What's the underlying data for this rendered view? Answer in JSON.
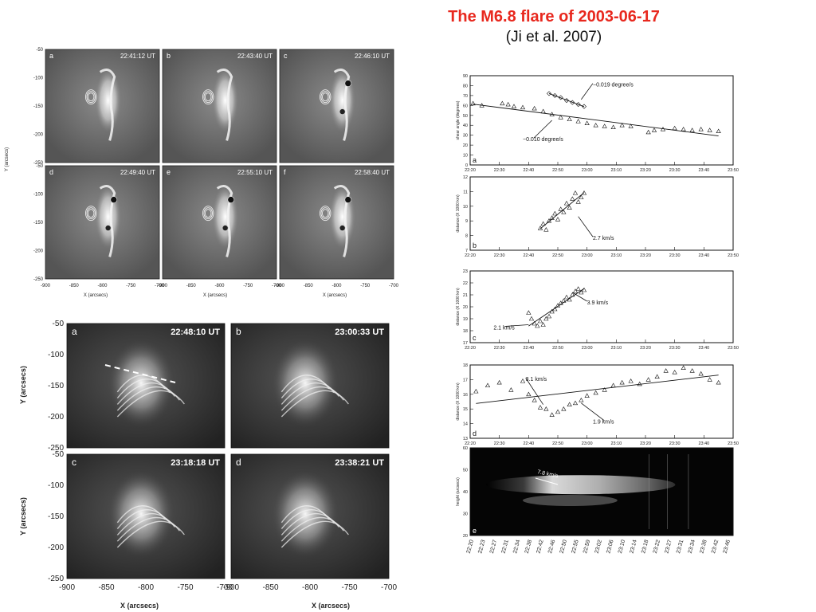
{
  "title": {
    "main": "The M6.8 flare of 2003-06-17",
    "citation": "(Ji  et al. 2007)"
  },
  "top_grid": {
    "ylabel": "Y (arcsecs)",
    "xlabel": "X (arcsecs)",
    "yticks": [
      "-50",
      "-100",
      "-150",
      "-200",
      "-250"
    ],
    "xticks": [
      "-900",
      "-850",
      "-800",
      "-750",
      "-700"
    ],
    "panels": [
      {
        "letter": "a",
        "time": "22:41:12 UT"
      },
      {
        "letter": "b",
        "time": "22:43:40 UT"
      },
      {
        "letter": "c",
        "time": "22:46:10 UT"
      },
      {
        "letter": "d",
        "time": "22:49:40 UT"
      },
      {
        "letter": "e",
        "time": "22:55:10 UT"
      },
      {
        "letter": "f",
        "time": "22:58:40 UT"
      }
    ]
  },
  "bottom_grid": {
    "ylabel": "Y (arcsecs)",
    "xlabel": "X (arcsecs)",
    "yticks": [
      "-50",
      "-100",
      "-150",
      "-200",
      "-250"
    ],
    "xticks": [
      "-900",
      "-850",
      "-800",
      "-750",
      "-700"
    ],
    "panels": [
      {
        "letter": "a",
        "time": "22:48:10 UT"
      },
      {
        "letter": "b",
        "time": "23:00:33 UT"
      },
      {
        "letter": "c",
        "time": "23:18:18 UT"
      },
      {
        "letter": "d",
        "time": "23:38:21 UT"
      }
    ]
  },
  "chart_data": [
    {
      "type": "scatter",
      "panel": "a",
      "ylabel": "shear angle (degrees)",
      "ylim": [
        0,
        90
      ],
      "yticks": [
        0,
        10,
        20,
        30,
        40,
        50,
        60,
        70,
        80,
        90
      ],
      "xlim": [
        "22:20",
        "23:50"
      ],
      "xticks": [
        "22:20",
        "22:30",
        "22:40",
        "22:50",
        "23:00",
        "23:10",
        "23:20",
        "23:30",
        "23:40",
        "23:50"
      ],
      "annotations": [
        "−0.019 degree/s",
        "−0.010 degree/s"
      ],
      "series": [
        {
          "marker": "triangle",
          "x": [
            "22:21",
            "22:24",
            "22:31",
            "22:33",
            "22:35",
            "22:38",
            "22:42",
            "22:45",
            "22:48",
            "22:51",
            "22:54",
            "22:57",
            "23:00",
            "23:03",
            "23:06",
            "23:09",
            "23:12",
            "23:15",
            "23:21",
            "23:23",
            "23:26",
            "23:30",
            "23:33",
            "23:36",
            "23:39",
            "23:42",
            "23:45"
          ],
          "y": [
            62,
            60,
            62,
            61,
            59,
            58,
            57,
            54,
            51,
            48,
            46,
            44,
            42,
            40,
            39,
            38,
            40,
            39,
            33,
            35,
            36,
            37,
            36,
            35,
            36,
            35,
            34
          ]
        },
        {
          "marker": "diamond",
          "x": [
            "22:47",
            "22:49",
            "22:51",
            "22:53",
            "22:55",
            "22:57",
            "22:59"
          ],
          "y": [
            72,
            70,
            68,
            65,
            63,
            61,
            59
          ]
        }
      ]
    },
    {
      "type": "scatter",
      "panel": "b",
      "ylabel": "distance (X 1000 km)",
      "ylim": [
        7,
        12
      ],
      "yticks": [
        7,
        8,
        9,
        10,
        11,
        12
      ],
      "xlim": [
        "22:20",
        "23:50"
      ],
      "xticks": [
        "22:20",
        "22:30",
        "22:40",
        "22:50",
        "23:00",
        "23:10",
        "23:20",
        "23:30",
        "23:40",
        "23:50"
      ],
      "annotations": [
        "2.7 km/s"
      ],
      "series": [
        {
          "marker": "triangle",
          "x": [
            "22:44",
            "22:45",
            "22:46",
            "22:47",
            "22:48",
            "22:49",
            "22:50",
            "22:51",
            "22:52",
            "22:53",
            "22:54",
            "22:55",
            "22:56",
            "22:57",
            "22:58",
            "22:59"
          ],
          "y": [
            8.5,
            8.8,
            8.4,
            9.0,
            9.2,
            9.5,
            9.1,
            9.8,
            9.6,
            10.2,
            9.9,
            10.5,
            10.9,
            10.3,
            10.6,
            10.9
          ]
        }
      ]
    },
    {
      "type": "scatter",
      "panel": "c",
      "ylabel": "distance (X 1000 km)",
      "ylim": [
        17,
        23
      ],
      "yticks": [
        17,
        18,
        19,
        20,
        21,
        22,
        23
      ],
      "xlim": [
        "22:20",
        "23:50"
      ],
      "xticks": [
        "22:20",
        "22:30",
        "22:40",
        "22:50",
        "23:00",
        "23:10",
        "23:20",
        "23:30",
        "23:40",
        "23:50"
      ],
      "annotations": [
        "3.9 km/s",
        "2.1 km/s"
      ],
      "series": [
        {
          "marker": "triangle",
          "x": [
            "22:40",
            "22:41",
            "22:42",
            "22:43",
            "22:44",
            "22:45",
            "22:46",
            "22:47",
            "22:48",
            "22:49",
            "22:50",
            "22:51",
            "22:52",
            "22:53",
            "22:54",
            "22:55",
            "22:56",
            "22:57",
            "22:58",
            "22:59"
          ],
          "y": [
            19.5,
            19.0,
            18.6,
            18.4,
            18.8,
            18.5,
            19.0,
            19.2,
            19.6,
            19.8,
            20.1,
            20.3,
            20.5,
            20.8,
            20.6,
            21.0,
            21.3,
            21.5,
            21.2,
            21.4
          ]
        }
      ]
    },
    {
      "type": "scatter",
      "panel": "d",
      "ylabel": "distance (X 1000 km)",
      "ylim": [
        13,
        18
      ],
      "yticks": [
        13,
        14,
        15,
        16,
        17,
        18
      ],
      "xlim": [
        "22:20",
        "23:50"
      ],
      "xticks": [
        "22:20",
        "22:30",
        "22:40",
        "22:50",
        "23:00",
        "23:10",
        "23:20",
        "23:30",
        "23:40",
        "23:50"
      ],
      "annotations": [
        "3.1 km/s",
        "1.9 km/s"
      ],
      "series": [
        {
          "marker": "triangle",
          "x": [
            "22:22",
            "22:26",
            "22:30",
            "22:34",
            "22:38",
            "22:40",
            "22:42",
            "22:44",
            "22:46",
            "22:48",
            "22:50",
            "22:52",
            "22:54",
            "22:56",
            "22:58",
            "23:00",
            "23:03",
            "23:06",
            "23:09",
            "23:12",
            "23:15",
            "23:18",
            "23:21",
            "23:24",
            "23:27",
            "23:30",
            "23:33",
            "23:36",
            "23:39",
            "23:42",
            "23:45"
          ],
          "y": [
            16.2,
            16.6,
            16.8,
            16.3,
            16.9,
            16.0,
            15.6,
            15.1,
            15.0,
            14.6,
            14.8,
            15.0,
            15.3,
            15.4,
            15.6,
            15.9,
            16.1,
            16.3,
            16.6,
            16.8,
            16.9,
            16.7,
            17.0,
            17.2,
            17.6,
            17.5,
            17.8,
            17.6,
            17.4,
            17.0,
            16.8
          ]
        }
      ]
    },
    {
      "type": "heatmap",
      "panel": "e",
      "ylabel": "height (arcsecs)",
      "ylim": [
        20,
        60
      ],
      "yticks": [
        20,
        30,
        40,
        50,
        60
      ],
      "xticks": [
        "22:20",
        "22:23",
        "22:27",
        "22:31",
        "22:34",
        "22:38",
        "22:42",
        "22:46",
        "22:50",
        "22:55",
        "22:59",
        "23:02",
        "23:06",
        "23:10",
        "23:14",
        "23:18",
        "23:22",
        "23:27",
        "23:31",
        "23:34",
        "23:38",
        "23:42",
        "23:46"
      ],
      "annotations": [
        "7.8 km/s"
      ]
    }
  ]
}
